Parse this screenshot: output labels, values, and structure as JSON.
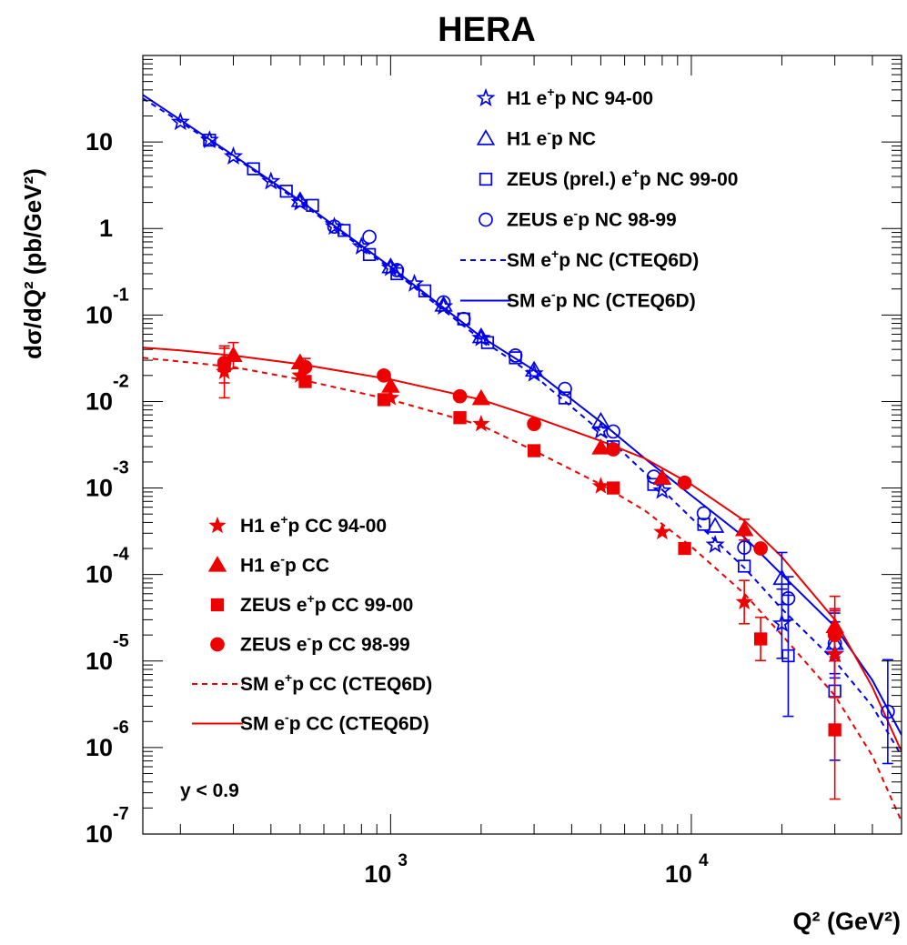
{
  "chart_data": {
    "type": "scatter",
    "title": "HERA",
    "xlabel": "Q²  (GeV²)",
    "ylabel": "dσ/dQ² (pb/GeV²)",
    "xscale": "log",
    "yscale": "log",
    "xlim": [
      150,
      50000
    ],
    "ylim": [
      1e-07,
      100
    ],
    "grid": false,
    "cut_label": "y < 0.9",
    "x_ticks": [
      {
        "value": 1000,
        "base": "10",
        "exp": "3"
      },
      {
        "value": 10000,
        "base": "10",
        "exp": "4"
      }
    ],
    "y_ticks": [
      {
        "value": 10,
        "base": "10",
        "exp": ""
      },
      {
        "value": 1,
        "base": "1",
        "exp": ""
      },
      {
        "value": 0.1,
        "base": "10",
        "exp": "-1"
      },
      {
        "value": 0.01,
        "base": "10",
        "exp": "-2"
      },
      {
        "value": 0.001,
        "base": "10",
        "exp": "-3"
      },
      {
        "value": 0.0001,
        "base": "10",
        "exp": "-4"
      },
      {
        "value": 1e-05,
        "base": "10",
        "exp": "-5"
      },
      {
        "value": 1e-06,
        "base": "10",
        "exp": "-6"
      },
      {
        "value": 1e-07,
        "base": "10",
        "exp": "-7"
      }
    ],
    "legends": [
      {
        "placement": "top-right",
        "entries": [
          {
            "pre": "H1 e",
            "sup": "+",
            "post": "p NC 94-00",
            "series": "h1_ep_nc"
          },
          {
            "pre": "H1 e",
            "sup": "-",
            "post": "p NC",
            "series": "h1_em_nc"
          },
          {
            "pre": "ZEUS (prel.) e",
            "sup": "+",
            "post": "p NC 99-00",
            "series": "zeus_ep_nc"
          },
          {
            "pre": "ZEUS e",
            "sup": "-",
            "post": "p NC 98-99",
            "series": "zeus_em_nc"
          },
          {
            "pre": "SM e",
            "sup": "+",
            "post": "p NC (CTEQ6D)",
            "series": "sm_ep_nc"
          },
          {
            "pre": "SM e",
            "sup": "-",
            "post": "p NC (CTEQ6D)",
            "series": "sm_em_nc"
          }
        ]
      },
      {
        "placement": "bottom-left",
        "entries": [
          {
            "pre": "H1 e",
            "sup": "+",
            "post": "p CC 94-00",
            "series": "h1_ep_cc"
          },
          {
            "pre": "H1 e",
            "sup": "-",
            "post": "p CC",
            "series": "h1_em_cc"
          },
          {
            "pre": "ZEUS e",
            "sup": "+",
            "post": "p CC 99-00",
            "series": "zeus_ep_cc"
          },
          {
            "pre": "ZEUS e",
            "sup": "-",
            "post": "p CC 98-99",
            "series": "zeus_em_cc"
          },
          {
            "pre": "SM e",
            "sup": "+",
            "post": "p CC (CTEQ6D)",
            "series": "sm_ep_cc"
          },
          {
            "pre": "SM e",
            "sup": "-",
            "post": "p CC (CTEQ6D)",
            "series": "sm_em_cc"
          }
        ]
      }
    ],
    "series": [
      {
        "id": "h1_ep_nc",
        "kind": "points",
        "marker": "star",
        "fill": false,
        "color": "#0000ee",
        "points": [
          [
            200,
            17
          ],
          [
            250,
            10.5
          ],
          [
            300,
            6.8
          ],
          [
            400,
            3.5
          ],
          [
            500,
            2.0
          ],
          [
            650,
            1.05
          ],
          [
            800,
            0.62
          ],
          [
            1000,
            0.35
          ],
          [
            1200,
            0.23
          ],
          [
            1500,
            0.125
          ],
          [
            2000,
            0.054
          ],
          [
            3000,
            0.021
          ],
          [
            5000,
            0.0046
          ],
          [
            8000,
            0.00093
          ],
          [
            12000,
            0.00022
          ],
          [
            20000,
            2.7e-05
          ],
          [
            30000,
            1.2e-05
          ]
        ],
        "errors": [
          [
            20000,
            0.4
          ],
          [
            30000,
            0.5
          ]
        ]
      },
      {
        "id": "h1_em_nc",
        "kind": "points",
        "marker": "triangle",
        "fill": false,
        "color": "#0000ee",
        "points": [
          [
            500,
            2.1
          ],
          [
            1000,
            0.36
          ],
          [
            1500,
            0.13
          ],
          [
            2000,
            0.056
          ],
          [
            3000,
            0.023
          ],
          [
            5000,
            0.0059
          ],
          [
            8000,
            0.0013
          ],
          [
            12000,
            0.00036
          ],
          [
            20000,
            9e-05
          ],
          [
            30000,
            1.6e-05
          ]
        ],
        "errors": [
          [
            20000,
            0.3
          ],
          [
            30000,
            0.4
          ]
        ]
      },
      {
        "id": "zeus_ep_nc",
        "kind": "points",
        "marker": "square",
        "fill": false,
        "color": "#0000ee",
        "points": [
          [
            250,
            10.5
          ],
          [
            350,
            4.9
          ],
          [
            450,
            2.7
          ],
          [
            550,
            1.85
          ],
          [
            700,
            0.95
          ],
          [
            850,
            0.5
          ],
          [
            1050,
            0.3
          ],
          [
            1300,
            0.19
          ],
          [
            1750,
            0.09
          ],
          [
            2100,
            0.048
          ],
          [
            2600,
            0.032
          ],
          [
            3800,
            0.011
          ],
          [
            5500,
            0.003
          ],
          [
            7500,
            0.0011
          ],
          [
            11000,
            0.00038
          ],
          [
            15000,
            0.000125
          ],
          [
            21000,
            1.15e-05
          ],
          [
            30000,
            4.5e-06
          ]
        ],
        "errors": [
          [
            21000,
            0.7
          ],
          [
            30000,
            0.8
          ]
        ]
      },
      {
        "id": "zeus_em_nc",
        "kind": "points",
        "marker": "circle",
        "fill": false,
        "color": "#0000ee",
        "points": [
          [
            650,
            1.05
          ],
          [
            850,
            0.8
          ],
          [
            1050,
            0.33
          ],
          [
            1500,
            0.14
          ],
          [
            1750,
            0.09
          ],
          [
            2600,
            0.034
          ],
          [
            3800,
            0.014
          ],
          [
            5500,
            0.0045
          ],
          [
            7500,
            0.00135
          ],
          [
            11000,
            0.00051
          ],
          [
            15000,
            0.000205
          ],
          [
            21000,
            5.3e-05
          ],
          [
            30000,
            1.6e-05
          ],
          [
            45000,
            2.6e-06
          ]
        ],
        "errors": [
          [
            15000,
            0.15
          ],
          [
            21000,
            0.25
          ],
          [
            30000,
            0.35
          ],
          [
            45000,
            0.6
          ]
        ]
      },
      {
        "id": "h1_ep_cc",
        "kind": "points",
        "marker": "star",
        "fill": true,
        "color": "#ee0000",
        "points": [
          [
            280,
            0.022
          ],
          [
            500,
            0.02
          ],
          [
            1000,
            0.011
          ],
          [
            2000,
            0.0055
          ],
          [
            5000,
            0.00105
          ],
          [
            8000,
            0.00031
          ],
          [
            15000,
            4.8e-05
          ],
          [
            30000,
            1.2e-05
          ]
        ],
        "errors": [
          [
            280,
            0.3
          ],
          [
            15000,
            0.25
          ],
          [
            30000,
            0.5
          ]
        ]
      },
      {
        "id": "h1_em_cc",
        "kind": "points",
        "marker": "triangle",
        "fill": true,
        "color": "#ee0000",
        "points": [
          [
            300,
            0.034
          ],
          [
            500,
            0.028
          ],
          [
            1000,
            0.015
          ],
          [
            2000,
            0.0108
          ],
          [
            5000,
            0.0029
          ],
          [
            8000,
            0.0013
          ],
          [
            15000,
            0.00033
          ],
          [
            30000,
            2.5e-05
          ]
        ],
        "errors": [
          [
            300,
            0.15
          ],
          [
            15000,
            0.12
          ],
          [
            30000,
            0.35
          ]
        ]
      },
      {
        "id": "zeus_ep_cc",
        "kind": "points",
        "marker": "square",
        "fill": true,
        "color": "#ee0000",
        "points": [
          [
            280,
            0.026
          ],
          [
            520,
            0.017
          ],
          [
            950,
            0.0105
          ],
          [
            1700,
            0.0065
          ],
          [
            3000,
            0.0027
          ],
          [
            5500,
            0.001
          ],
          [
            9500,
            0.0002
          ],
          [
            17000,
            1.8e-05
          ],
          [
            30000,
            1.6e-06
          ]
        ],
        "errors": [
          [
            280,
            0.2
          ],
          [
            17000,
            0.25
          ],
          [
            30000,
            0.8
          ]
        ]
      },
      {
        "id": "zeus_em_cc",
        "kind": "points",
        "marker": "circle",
        "fill": true,
        "color": "#ee0000",
        "points": [
          [
            280,
            0.028
          ],
          [
            520,
            0.025
          ],
          [
            950,
            0.02
          ],
          [
            1700,
            0.0115
          ],
          [
            3000,
            0.0055
          ],
          [
            5500,
            0.0028
          ],
          [
            9500,
            0.00115
          ],
          [
            17000,
            0.0002
          ],
          [
            30000,
            2e-05
          ]
        ],
        "errors": [
          [
            520,
            0.1
          ],
          [
            30000,
            0.3
          ]
        ]
      },
      {
        "id": "sm_ep_nc",
        "kind": "line",
        "dash": "dashed",
        "color": "#0000ee",
        "points": [
          [
            150,
            32
          ],
          [
            200,
            17
          ],
          [
            300,
            6.8
          ],
          [
            500,
            2.0
          ],
          [
            1000,
            0.34
          ],
          [
            2000,
            0.052
          ],
          [
            3000,
            0.02
          ],
          [
            5000,
            0.0045
          ],
          [
            7000,
            0.0015
          ],
          [
            10000,
            0.00045
          ],
          [
            15000,
            0.00012
          ],
          [
            20000,
            4e-05
          ],
          [
            30000,
            1e-05
          ],
          [
            40000,
            3e-06
          ],
          [
            50000,
            8e-07
          ]
        ]
      },
      {
        "id": "sm_em_nc",
        "kind": "line",
        "dash": "solid",
        "color": "#0000ee",
        "points": [
          [
            150,
            35
          ],
          [
            200,
            18
          ],
          [
            300,
            7
          ],
          [
            500,
            2.1
          ],
          [
            1000,
            0.36
          ],
          [
            2000,
            0.056
          ],
          [
            3000,
            0.023
          ],
          [
            5000,
            0.0058
          ],
          [
            7000,
            0.0022
          ],
          [
            10000,
            0.00082
          ],
          [
            15000,
            0.00027
          ],
          [
            20000,
            0.0001
          ],
          [
            30000,
            2.5e-05
          ],
          [
            40000,
            6e-06
          ],
          [
            50000,
            1.4e-06
          ]
        ]
      },
      {
        "id": "sm_ep_cc",
        "kind": "line",
        "dash": "dashed",
        "color": "#ee0000",
        "points": [
          [
            150,
            0.032
          ],
          [
            200,
            0.029
          ],
          [
            300,
            0.025
          ],
          [
            500,
            0.018
          ],
          [
            1000,
            0.0105
          ],
          [
            2000,
            0.0053
          ],
          [
            3000,
            0.0027
          ],
          [
            5000,
            0.0011
          ],
          [
            7000,
            0.00055
          ],
          [
            10000,
            0.00021
          ],
          [
            15000,
            6e-05
          ],
          [
            20000,
            2e-05
          ],
          [
            30000,
            4e-06
          ],
          [
            40000,
            8e-07
          ],
          [
            50000,
            1.4e-07
          ]
        ]
      },
      {
        "id": "sm_em_cc",
        "kind": "line",
        "dash": "solid",
        "color": "#ee0000",
        "points": [
          [
            150,
            0.042
          ],
          [
            200,
            0.039
          ],
          [
            300,
            0.034
          ],
          [
            500,
            0.027
          ],
          [
            1000,
            0.018
          ],
          [
            2000,
            0.0105
          ],
          [
            3000,
            0.0066
          ],
          [
            5000,
            0.0035
          ],
          [
            7000,
            0.0022
          ],
          [
            10000,
            0.0011
          ],
          [
            15000,
            0.00042
          ],
          [
            20000,
            0.00016
          ],
          [
            30000,
            3e-05
          ],
          [
            40000,
            5e-06
          ],
          [
            50000,
            9e-07
          ]
        ]
      }
    ]
  }
}
